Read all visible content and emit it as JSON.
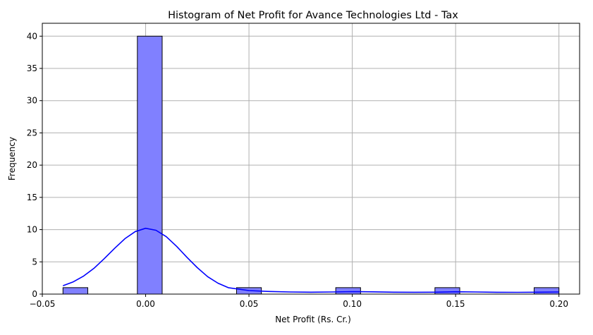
{
  "chart_data": {
    "type": "bar",
    "subtype": "histogram-with-kde",
    "title": "Histogram of Net Profit for Avance Technologies Ltd - Tax",
    "xlabel": "Net Profit (Rs. Cr.)",
    "ylabel": "Frequency",
    "xlim": [
      -0.05,
      0.21
    ],
    "ylim": [
      0,
      42
    ],
    "xticks": [
      -0.05,
      0.0,
      0.05,
      0.1,
      0.15,
      0.2
    ],
    "xtick_labels": [
      "−0.05",
      "0.00",
      "0.05",
      "0.10",
      "0.15",
      "0.20"
    ],
    "yticks": [
      0,
      5,
      10,
      15,
      20,
      25,
      30,
      35,
      40
    ],
    "ytick_labels": [
      "0",
      "5",
      "10",
      "15",
      "20",
      "25",
      "30",
      "35",
      "40"
    ],
    "grid": true,
    "bins": [
      {
        "x0": -0.04,
        "x1": -0.028,
        "count": 1
      },
      {
        "x0": -0.004,
        "x1": 0.008,
        "count": 40
      },
      {
        "x0": 0.044,
        "x1": 0.056,
        "count": 1
      },
      {
        "x0": 0.092,
        "x1": 0.104,
        "count": 1
      },
      {
        "x0": 0.14,
        "x1": 0.152,
        "count": 1
      },
      {
        "x0": 0.188,
        "x1": 0.2,
        "count": 1
      }
    ],
    "kde": {
      "x": [
        -0.04,
        -0.035,
        -0.03,
        -0.025,
        -0.02,
        -0.015,
        -0.01,
        -0.005,
        0.0,
        0.005,
        0.01,
        0.015,
        0.02,
        0.025,
        0.03,
        0.035,
        0.04,
        0.05,
        0.06,
        0.07,
        0.08,
        0.09,
        0.1,
        0.11,
        0.12,
        0.13,
        0.14,
        0.15,
        0.16,
        0.17,
        0.18,
        0.19,
        0.2
      ],
      "y": [
        1.3,
        1.9,
        2.8,
        4.0,
        5.5,
        7.1,
        8.6,
        9.7,
        10.2,
        9.9,
        8.9,
        7.4,
        5.7,
        4.1,
        2.7,
        1.7,
        1.0,
        0.55,
        0.4,
        0.33,
        0.3,
        0.33,
        0.38,
        0.35,
        0.3,
        0.28,
        0.3,
        0.36,
        0.33,
        0.28,
        0.27,
        0.3,
        0.33
      ]
    },
    "colors": {
      "bar_fill": "#8080ff",
      "bar_edge": "#000000",
      "kde_line": "#0000ff",
      "grid": "#b0b0b0"
    }
  }
}
